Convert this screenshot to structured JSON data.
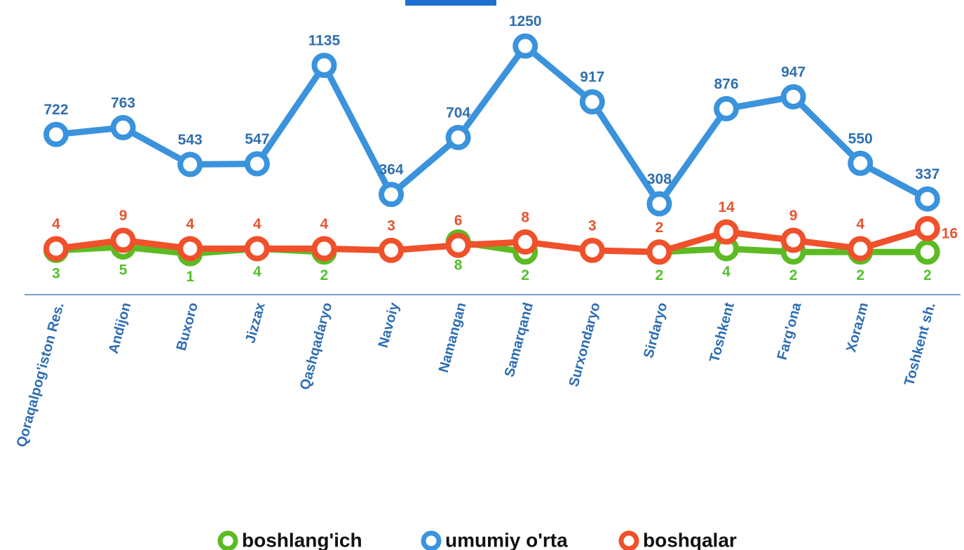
{
  "chart_data": {
    "type": "line",
    "categories": [
      "Qoraqalpog'iston Res.",
      "Andijon",
      "Buxoro",
      "Jizzax",
      "Qashqadaryo",
      "Navoiy",
      "Namangan",
      "Samarqand",
      "Surxondaryo",
      "Sirdaryo",
      "Toshkent",
      "Farg'ona",
      "Xorazm",
      "Toshkent sh."
    ],
    "series": [
      {
        "name": "boshlang'ich",
        "color": "#5cbb23",
        "axis": "y2",
        "values": [
          3,
          5,
          1,
          4,
          2,
          null,
          8,
          2,
          null,
          2,
          4,
          2,
          2,
          2
        ]
      },
      {
        "name": "umumiy o'rta",
        "color": "#3a93dc",
        "values": [
          722,
          763,
          543,
          547,
          1135,
          364,
          704,
          1250,
          917,
          308,
          876,
          947,
          550,
          337
        ]
      },
      {
        "name": "boshqalar",
        "color": "#f0502a",
        "axis": "y2",
        "values": [
          4,
          9,
          4,
          4,
          4,
          3,
          6,
          8,
          3,
          2,
          14,
          9,
          4,
          16
        ]
      }
    ],
    "ylim": [
      0,
      1500
    ],
    "y2lim": [
      0,
      150
    ],
    "legend": "bottom"
  }
}
